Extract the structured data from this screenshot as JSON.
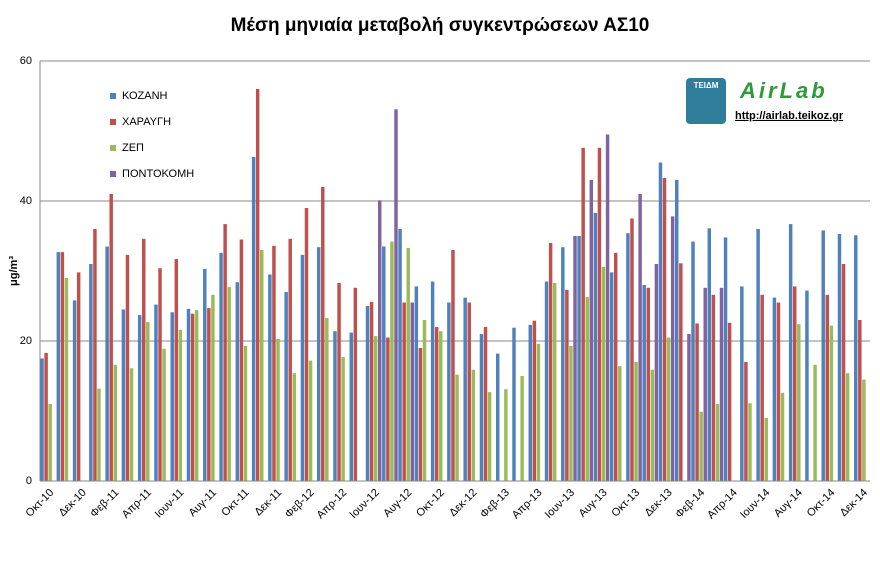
{
  "chart_data": {
    "type": "bar",
    "title": "Μέση μηνιαία μεταβολή συγκεντρώσεων ΑΣ10",
    "ylabel": "μg/m³",
    "annotations": [
      "ΤΕΙΔΜ",
      "AirLab",
      "http://airlab.teikoz.gr"
    ],
    "categories": [
      "Οκτ-10",
      null,
      "Δεκ-10",
      null,
      "Φεβ-11",
      null,
      "Απρ-11",
      null,
      "Ιουν-11",
      null,
      "Αυγ-11",
      null,
      "Οκτ-11",
      null,
      "Δεκ-11",
      null,
      "Φεβ-12",
      null,
      "Απρ-12",
      null,
      "Ιουν-12",
      null,
      "Αυγ-12",
      null,
      "Οκτ-12",
      null,
      "Δεκ-12",
      null,
      "Φεβ-13",
      null,
      "Απρ-13",
      null,
      "Ιουν-13",
      null,
      "Αυγ-13",
      null,
      "Οκτ-13",
      null,
      "Δεκ-13",
      null,
      "Φεβ-14",
      null,
      "Απρ-14",
      null,
      "Ιουν-14",
      null,
      "Αυγ-14",
      null,
      "Οκτ-14",
      null,
      "Δεκ-14"
    ],
    "series": [
      {
        "name": "ΚΟΖΑΝΗ",
        "color": "#4f81bd",
        "values": [
          17.5,
          32.7,
          25.8,
          31,
          33.5,
          24.5,
          23.7,
          25.2,
          24.1,
          24.6,
          30.3,
          32.6,
          28.4,
          46.3,
          29.5,
          27,
          32.3,
          33.4,
          21.4,
          21.2,
          25,
          33.5,
          36,
          27.8,
          28.5,
          25.5,
          26.2,
          21,
          18.2,
          21.9,
          22.3,
          28.5,
          33.4,
          35,
          38.3,
          29.8,
          35.4,
          28,
          45.5,
          43,
          34.2,
          36.1,
          34.8,
          27.8,
          36,
          26.2,
          36.7,
          27.2,
          35.8,
          35.3,
          35.1
        ]
      },
      {
        "name": "ΧΑΡΑΥΓΗ",
        "color": "#c0504d",
        "values": [
          18.3,
          32.7,
          29.8,
          36,
          41,
          32.3,
          34.6,
          30.4,
          31.7,
          23.9,
          24.7,
          36.7,
          34.5,
          56,
          33.6,
          34.6,
          39,
          42,
          28.3,
          27.6,
          25.6,
          20.5,
          25.5,
          19,
          22,
          33,
          25.5,
          22,
          null,
          null,
          22.9,
          34,
          27.3,
          47.6,
          47.6,
          32.6,
          37.5,
          27.6,
          43.3,
          31.1,
          22.5,
          26.6,
          22.6,
          17,
          26.6,
          25.5,
          27.8,
          null,
          26.6,
          31,
          23
        ]
      },
      {
        "name": "ΖΕΠ",
        "color": "#9bbb59",
        "values": [
          11,
          29,
          null,
          13.2,
          16.6,
          16.1,
          22.7,
          18.9,
          21.6,
          24.4,
          26.6,
          27.7,
          19.3,
          33,
          20.3,
          15.4,
          17.2,
          23.3,
          17.7,
          null,
          20.7,
          34.2,
          33.3,
          23,
          21.4,
          15.2,
          15.9,
          12.7,
          13.1,
          15,
          19.6,
          28.3,
          19.3,
          26.3,
          30.6,
          16.4,
          17,
          15.9,
          20.5,
          null,
          9.9,
          11,
          null,
          11.1,
          9,
          12.6,
          22.4,
          16.6,
          22.2,
          15.4,
          14.5
        ]
      },
      {
        "name": "ΠΟΝΤΟΚΟΜΗ",
        "color": "#8064a2",
        "values": [
          null,
          null,
          null,
          null,
          null,
          null,
          null,
          null,
          null,
          null,
          null,
          null,
          null,
          null,
          null,
          null,
          null,
          null,
          null,
          null,
          40.1,
          53.1,
          25.5,
          null,
          null,
          null,
          null,
          null,
          null,
          null,
          null,
          null,
          35,
          43,
          49.5,
          null,
          41,
          31,
          37.8,
          21,
          27.6,
          27.6,
          null,
          null,
          null,
          null,
          null,
          null,
          null,
          null,
          null
        ]
      }
    ],
    "ylim": [
      0,
      60
    ],
    "yticks": [
      0,
      20,
      40,
      60
    ],
    "grid": true
  }
}
